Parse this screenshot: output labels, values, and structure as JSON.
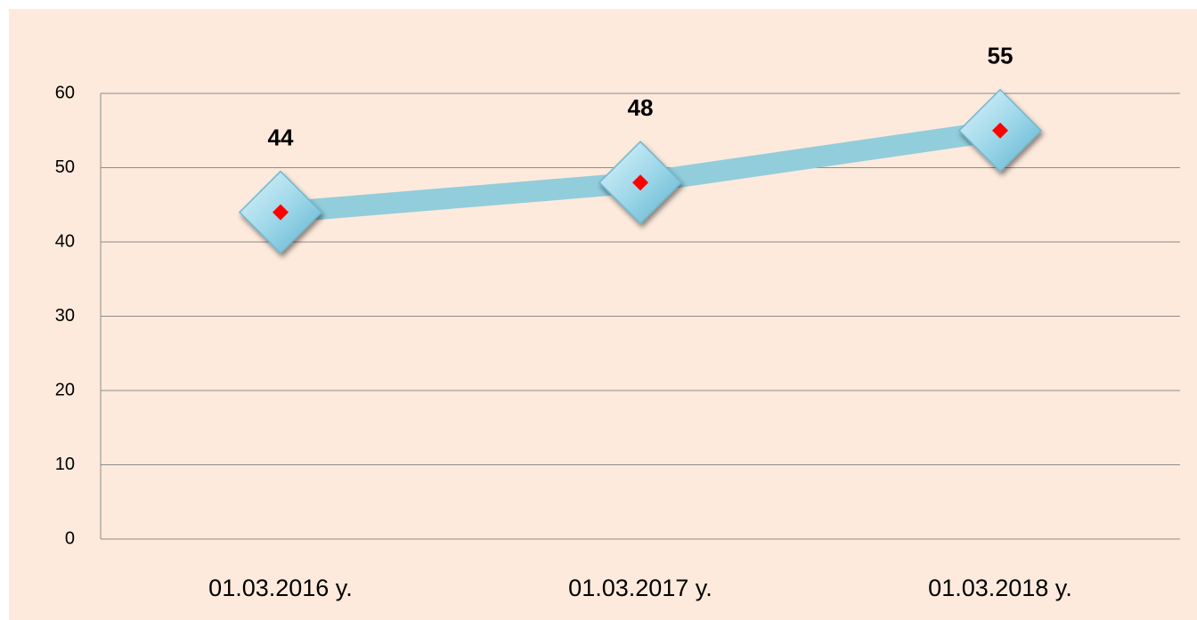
{
  "chart_data": {
    "type": "line",
    "categories": [
      "01.03.2016 y.",
      "01.03.2017 y.",
      "01.03.2018 y."
    ],
    "values": [
      44,
      48,
      55
    ],
    "color": "#92cddc",
    "marker_color": "#ff0000",
    "ylim": [
      0,
      60
    ],
    "yticks": [
      0,
      10,
      20,
      30,
      40,
      50,
      60
    ],
    "grid": true
  }
}
